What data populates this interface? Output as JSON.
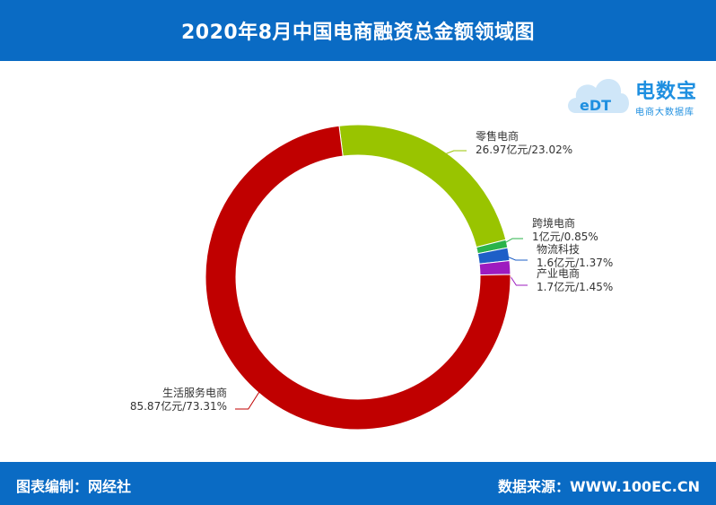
{
  "header": {
    "title": "2020年8月中国电商融资总金额领域图"
  },
  "footer": {
    "left": "图表编制：网经社",
    "right": "数据来源：WWW.100EC.CN"
  },
  "logo": {
    "cloud_text": "eDT",
    "brand": "电数宝",
    "sub": "电商大数据库",
    "icon": "cloud-logo-icon"
  },
  "colors": {
    "header_bg": "#0a6bc4",
    "retail": "#99c400",
    "cross_border": "#2ab34a",
    "logistics": "#1e5fc7",
    "industrial": "#9d1bbf",
    "services": "#c00000"
  },
  "chart_data": {
    "type": "pie",
    "donut": true,
    "title": "2020年8月中国电商融资总金额领域图",
    "slices": [
      {
        "name": "零售电商",
        "value": 26.97,
        "percent": 23.02,
        "label": "26.97亿元/23.02%",
        "color": "#99c400"
      },
      {
        "name": "跨境电商",
        "value": 1,
        "percent": 0.85,
        "label": "1亿元/0.85%",
        "color": "#2ab34a"
      },
      {
        "name": "物流科技",
        "value": 1.6,
        "percent": 1.37,
        "label": "1.6亿元/1.37%",
        "color": "#1e5fc7"
      },
      {
        "name": "产业电商",
        "value": 1.7,
        "percent": 1.45,
        "label": "1.7亿元/1.45%",
        "color": "#9d1bbf"
      },
      {
        "name": "生活服务电商",
        "value": 85.87,
        "percent": 73.31,
        "label": "85.87亿元/73.31%",
        "color": "#c00000"
      }
    ]
  }
}
